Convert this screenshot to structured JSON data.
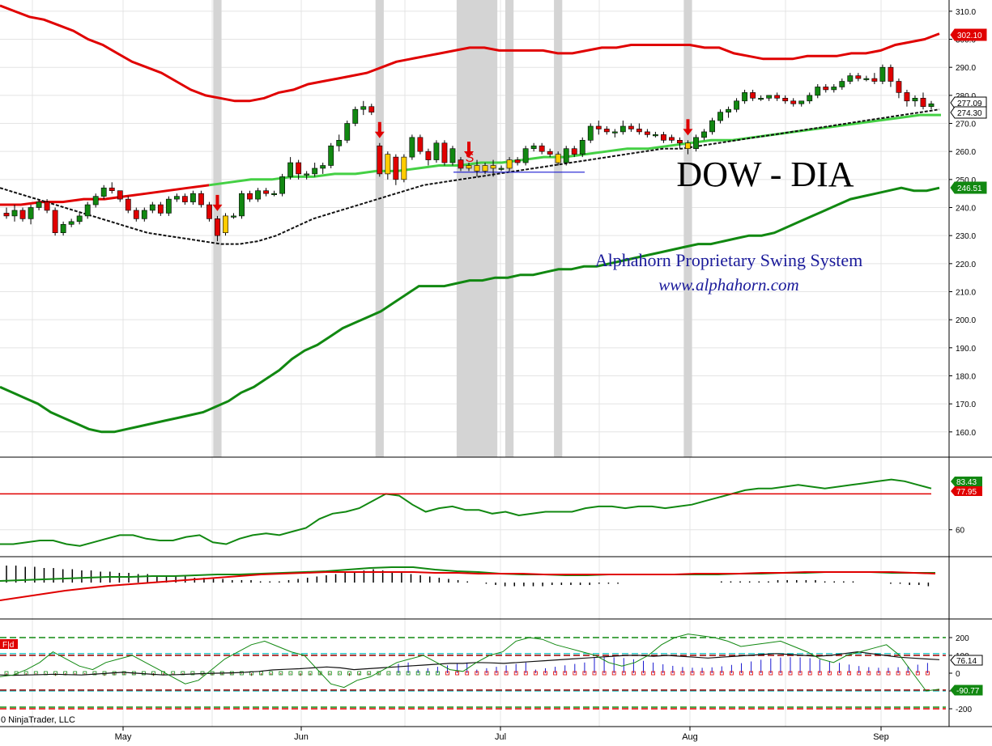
{
  "chart_data": [
    {
      "type": "candlestick",
      "title": "DOW - DIA",
      "annotation_line1": "Alphahorn Proprietary Swing System",
      "annotation_line2": "www.alphahorn.com",
      "signal_label": "S",
      "x_labels": [
        "May",
        "Jun",
        "Jul",
        "Aug",
        "Sep"
      ],
      "y_ticks": [
        160,
        170,
        180,
        190,
        200,
        210,
        220,
        230,
        240,
        250,
        260,
        270,
        280,
        290,
        300,
        310
      ],
      "ylim": [
        151,
        314
      ],
      "grid": true,
      "price_badges": [
        {
          "value": "302.10",
          "color": "#e00000"
        },
        {
          "value": "277.09",
          "color": "#000000"
        },
        {
          "value": "274.30",
          "color": "#000000"
        },
        {
          "value": "246.51",
          "color": "#118811"
        }
      ],
      "series": {
        "candles": [
          [
            238,
            240,
            236,
            237
          ],
          [
            237,
            241,
            235,
            239
          ],
          [
            239,
            240,
            235,
            236
          ],
          [
            236,
            241,
            234,
            240
          ],
          [
            240,
            243,
            239,
            242
          ],
          [
            242,
            243,
            238,
            239
          ],
          [
            239,
            240,
            230,
            231
          ],
          [
            231,
            235,
            230,
            234
          ],
          [
            234,
            236,
            233,
            235
          ],
          [
            235,
            238,
            234,
            237
          ],
          [
            237,
            242,
            236,
            241
          ],
          [
            241,
            245,
            240,
            244
          ],
          [
            244,
            248,
            243,
            247
          ],
          [
            247,
            249,
            245,
            246
          ],
          [
            246,
            246,
            242,
            243
          ],
          [
            243,
            244,
            238,
            239
          ],
          [
            239,
            240,
            235,
            236
          ],
          [
            236,
            240,
            235,
            239
          ],
          [
            239,
            242,
            238,
            241
          ],
          [
            241,
            242,
            237,
            238
          ],
          [
            238,
            244,
            237,
            243
          ],
          [
            243,
            245,
            242,
            244
          ],
          [
            244,
            245,
            241,
            242
          ],
          [
            242,
            246,
            241,
            245
          ],
          [
            245,
            246,
            240,
            241
          ],
          [
            241,
            242,
            235,
            236
          ],
          [
            236,
            237,
            228,
            230
          ],
          [
            231,
            238,
            230,
            237
          ],
          [
            237,
            238,
            236,
            237
          ],
          [
            237,
            246,
            236,
            245
          ],
          [
            245,
            246,
            242,
            243
          ],
          [
            243,
            247,
            242,
            246
          ],
          [
            246,
            247,
            244,
            245
          ],
          [
            245,
            246,
            244,
            245
          ],
          [
            245,
            252,
            244,
            251
          ],
          [
            251,
            258,
            250,
            256
          ],
          [
            256,
            257,
            250,
            252
          ],
          [
            252,
            253,
            250,
            252
          ],
          [
            252,
            256,
            251,
            254
          ],
          [
            254,
            256,
            252,
            255
          ],
          [
            255,
            263,
            254,
            262
          ],
          [
            262,
            266,
            260,
            264
          ],
          [
            264,
            271,
            263,
            270
          ],
          [
            270,
            276,
            269,
            275
          ],
          [
            275,
            278,
            273,
            276
          ],
          [
            276,
            277,
            273,
            274
          ],
          [
            262,
            263,
            251,
            252
          ],
          [
            252,
            260,
            250,
            259
          ],
          [
            258,
            259,
            248,
            250
          ],
          [
            250,
            259,
            249,
            258
          ],
          [
            258,
            266,
            257,
            265
          ],
          [
            265,
            266,
            259,
            260
          ],
          [
            260,
            261,
            255,
            257
          ],
          [
            257,
            264,
            256,
            263
          ],
          [
            263,
            264,
            255,
            256
          ],
          [
            256,
            262,
            255,
            261
          ],
          [
            257,
            258,
            253,
            254
          ],
          [
            254,
            256,
            253,
            255
          ],
          [
            255,
            257,
            251,
            253
          ],
          [
            253,
            256,
            252,
            255
          ],
          [
            255,
            257,
            251,
            254
          ],
          [
            254,
            255,
            253,
            254
          ],
          [
            254,
            258,
            253,
            257
          ],
          [
            257,
            258,
            255,
            256
          ],
          [
            256,
            262,
            255,
            261
          ],
          [
            261,
            263,
            260,
            262
          ],
          [
            262,
            263,
            259,
            260
          ],
          [
            260,
            261,
            258,
            259
          ],
          [
            259,
            260,
            255,
            256
          ],
          [
            256,
            262,
            255,
            261
          ],
          [
            261,
            262,
            258,
            259
          ],
          [
            259,
            265,
            258,
            264
          ],
          [
            264,
            270,
            263,
            269
          ],
          [
            269,
            271,
            266,
            268
          ],
          [
            268,
            269,
            266,
            267
          ],
          [
            267,
            268,
            265,
            267
          ],
          [
            267,
            271,
            266,
            269
          ],
          [
            269,
            270,
            267,
            268
          ],
          [
            268,
            270,
            266,
            267
          ],
          [
            267,
            268,
            265,
            266
          ],
          [
            266,
            267,
            265,
            266
          ],
          [
            266,
            267,
            263,
            264
          ],
          [
            265,
            266,
            263,
            264
          ],
          [
            264,
            265,
            261,
            263
          ],
          [
            263,
            264,
            259,
            261
          ],
          [
            261,
            266,
            260,
            265
          ],
          [
            265,
            268,
            264,
            267
          ],
          [
            267,
            272,
            266,
            271
          ],
          [
            271,
            275,
            270,
            274
          ],
          [
            274,
            276,
            272,
            275
          ],
          [
            275,
            279,
            274,
            278
          ],
          [
            278,
            282,
            277,
            281
          ],
          [
            281,
            282,
            278,
            279
          ],
          [
            279,
            280,
            278,
            279
          ],
          [
            279,
            280,
            278,
            280
          ],
          [
            280,
            281,
            278,
            279
          ],
          [
            279,
            280,
            277,
            278
          ],
          [
            278,
            279,
            276,
            277
          ],
          [
            277,
            278,
            276,
            278
          ],
          [
            278,
            281,
            277,
            280
          ],
          [
            280,
            284,
            279,
            283
          ],
          [
            283,
            284,
            281,
            282
          ],
          [
            282,
            284,
            281,
            283
          ],
          [
            283,
            286,
            282,
            285
          ],
          [
            285,
            288,
            284,
            287
          ],
          [
            287,
            288,
            285,
            286
          ],
          [
            286,
            287,
            285,
            286
          ],
          [
            286,
            288,
            284,
            285
          ],
          [
            285,
            291,
            284,
            290
          ],
          [
            290,
            291,
            283,
            285
          ],
          [
            285,
            286,
            279,
            281
          ],
          [
            281,
            282,
            276,
            278
          ],
          [
            278,
            280,
            276,
            279
          ],
          [
            279,
            281,
            275,
            276
          ],
          [
            276,
            278,
            275,
            277
          ]
        ],
        "upper_band": [
          312,
          310,
          308,
          307,
          305,
          303,
          300,
          298,
          295,
          292,
          290,
          288,
          285,
          282,
          280,
          279,
          278,
          278,
          279,
          281,
          282,
          284,
          285,
          286,
          287,
          288,
          290,
          292,
          293,
          294,
          295,
          296,
          297,
          297,
          296,
          296,
          296,
          296,
          295,
          295,
          296,
          297,
          297,
          298,
          298,
          298,
          298,
          298,
          297,
          297,
          295,
          294,
          293,
          293,
          293,
          294,
          294,
          294,
          295,
          295,
          296,
          298,
          299,
          300,
          302
        ],
        "lower_band": [
          176,
          174,
          172,
          170,
          167,
          165,
          163,
          161,
          160,
          160,
          161,
          162,
          163,
          164,
          165,
          166,
          167,
          169,
          171,
          174,
          176,
          179,
          182,
          186,
          189,
          191,
          194,
          197,
          199,
          201,
          203,
          206,
          209,
          212,
          212,
          212,
          213,
          214,
          214,
          215,
          215,
          216,
          216,
          217,
          218,
          218,
          219,
          219,
          220,
          221,
          222,
          223,
          224,
          225,
          226,
          227,
          227,
          228,
          229,
          230,
          230,
          231,
          233,
          235,
          237,
          239,
          241,
          243,
          244,
          245,
          246,
          247,
          246,
          246,
          247
        ],
        "ma_green": [
          241,
          241,
          242,
          242,
          243,
          243,
          244,
          245,
          246,
          247,
          248,
          249,
          250,
          250,
          251,
          251,
          252,
          252,
          253,
          253,
          254,
          255,
          255,
          256,
          256,
          257,
          258,
          258,
          259,
          260,
          261,
          261,
          262,
          263,
          264,
          264,
          265,
          266,
          267,
          268,
          269,
          270,
          271,
          272,
          273,
          273
        ],
        "ma_black": [
          247,
          245,
          243,
          241,
          239,
          237,
          235,
          233,
          231,
          230,
          229,
          228,
          227,
          227,
          228,
          230,
          233,
          236,
          238,
          240,
          242,
          244,
          246,
          248,
          249,
          250,
          251,
          252,
          253,
          254,
          255,
          256,
          257,
          258,
          259,
          260,
          261,
          261,
          262,
          263,
          264,
          265,
          266,
          267,
          268,
          269,
          270,
          271,
          272,
          273,
          274,
          275
        ],
        "signals_down": [
          26,
          46,
          57,
          84
        ],
        "shaded_bars": [
          26,
          46,
          56,
          57,
          58,
          59,
          60,
          62,
          68,
          84
        ]
      }
    },
    {
      "type": "line",
      "name": "oscillator",
      "y_ticks": [
        60
      ],
      "badges": [
        {
          "value": "83.43",
          "color": "#118811"
        },
        {
          "value": "77.95",
          "color": "#e00000"
        }
      ]
    },
    {
      "type": "bar",
      "name": "histogram-macd",
      "badges": []
    },
    {
      "type": "line",
      "name": "cci",
      "label": "F|d",
      "y_ticks": [
        200,
        100,
        0,
        -100,
        -200
      ],
      "badges": [
        {
          "value": "76.14",
          "color": "#000000"
        },
        {
          "value": "-90.77",
          "color": "#118811"
        }
      ],
      "footer": "0 NinjaTrader, LLC"
    }
  ]
}
